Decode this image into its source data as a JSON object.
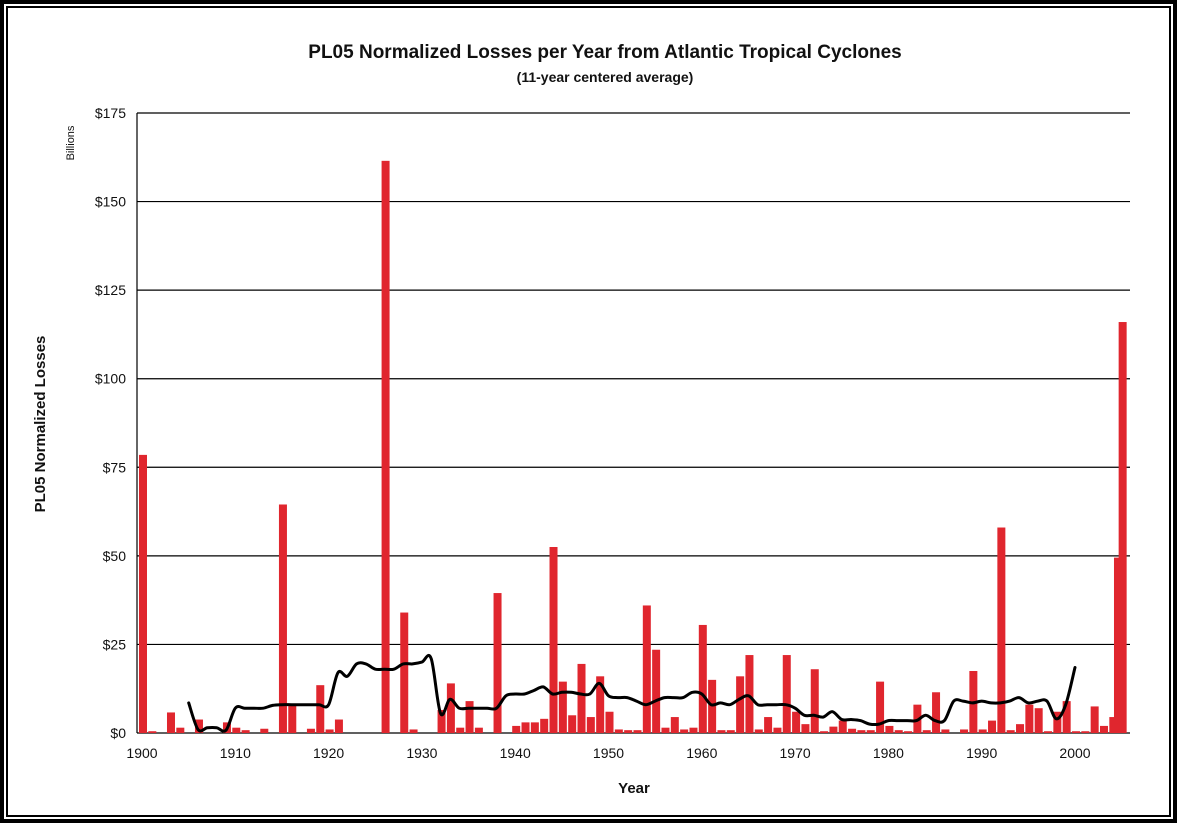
{
  "chart_data": {
    "type": "bar",
    "title": "PL05 Normalized Losses per Year from Atlantic Tropical Cyclones",
    "subtitle": "(11-year centered average)",
    "xlabel": "Year",
    "ylabel": "PL05 Normalized Losses",
    "yunit_label": "Billions",
    "ylim": [
      0,
      175
    ],
    "xlim": [
      1900,
      2005
    ],
    "yticks": [
      0,
      25,
      50,
      75,
      100,
      125,
      150,
      175
    ],
    "ytick_labels": [
      "$0",
      "$25",
      "$50",
      "$75",
      "$100",
      "$125",
      "$150",
      "$175"
    ],
    "xticks": [
      1900,
      1910,
      1920,
      1930,
      1940,
      1950,
      1960,
      1970,
      1980,
      1990,
      2000
    ],
    "xtick_labels": [
      "1900",
      "1910",
      "1920",
      "1930",
      "1940",
      "1950",
      "1960",
      "1970",
      "1980",
      "1990",
      "2000"
    ],
    "grid": true,
    "series": [
      {
        "kind": "bar",
        "color": "#e0262e",
        "points": [
          [
            1900,
            78.5
          ],
          [
            1901,
            0.5
          ],
          [
            1903,
            5.8
          ],
          [
            1904,
            1.5
          ],
          [
            1906,
            3.8
          ],
          [
            1909,
            3.0
          ],
          [
            1910,
            1.5
          ],
          [
            1911,
            0.8
          ],
          [
            1913,
            1.2
          ],
          [
            1915,
            64.5
          ],
          [
            1916,
            8.0
          ],
          [
            1918,
            1.2
          ],
          [
            1919,
            13.5
          ],
          [
            1920,
            1.0
          ],
          [
            1921,
            3.8
          ],
          [
            1926,
            161.5
          ],
          [
            1928,
            34.0
          ],
          [
            1929,
            1.0
          ],
          [
            1932,
            6.5
          ],
          [
            1933,
            14.0
          ],
          [
            1934,
            1.5
          ],
          [
            1935,
            9.0
          ],
          [
            1936,
            1.5
          ],
          [
            1938,
            39.5
          ],
          [
            1940,
            2.0
          ],
          [
            1941,
            3.0
          ],
          [
            1942,
            3.0
          ],
          [
            1943,
            4.0
          ],
          [
            1944,
            52.5
          ],
          [
            1945,
            14.5
          ],
          [
            1946,
            5.0
          ],
          [
            1947,
            19.5
          ],
          [
            1948,
            4.5
          ],
          [
            1949,
            16.0
          ],
          [
            1950,
            6.0
          ],
          [
            1951,
            1.0
          ],
          [
            1952,
            0.8
          ],
          [
            1953,
            0.8
          ],
          [
            1954,
            36.0
          ],
          [
            1955,
            23.5
          ],
          [
            1956,
            1.5
          ],
          [
            1957,
            4.5
          ],
          [
            1958,
            1.0
          ],
          [
            1959,
            1.5
          ],
          [
            1960,
            30.5
          ],
          [
            1961,
            15.0
          ],
          [
            1962,
            0.8
          ],
          [
            1963,
            0.8
          ],
          [
            1964,
            16.0
          ],
          [
            1965,
            22.0
          ],
          [
            1966,
            1.0
          ],
          [
            1967,
            4.5
          ],
          [
            1968,
            1.5
          ],
          [
            1969,
            22.0
          ],
          [
            1970,
            6.0
          ],
          [
            1971,
            2.5
          ],
          [
            1972,
            18.0
          ],
          [
            1973,
            0.5
          ],
          [
            1974,
            1.8
          ],
          [
            1975,
            3.5
          ],
          [
            1976,
            1.2
          ],
          [
            1977,
            0.8
          ],
          [
            1978,
            0.8
          ],
          [
            1979,
            14.5
          ],
          [
            1980,
            2.0
          ],
          [
            1981,
            0.8
          ],
          [
            1982,
            0.5
          ],
          [
            1983,
            8.0
          ],
          [
            1984,
            0.8
          ],
          [
            1985,
            11.5
          ],
          [
            1986,
            1.0
          ],
          [
            1988,
            1.0
          ],
          [
            1989,
            17.5
          ],
          [
            1990,
            1.0
          ],
          [
            1991,
            3.5
          ],
          [
            1992,
            58.0
          ],
          [
            1993,
            0.8
          ],
          [
            1994,
            2.5
          ],
          [
            1995,
            8.0
          ],
          [
            1996,
            7.0
          ],
          [
            1997,
            0.5
          ],
          [
            1998,
            6.0
          ],
          [
            1999,
            9.0
          ],
          [
            2000,
            0.5
          ],
          [
            2001,
            0.5
          ],
          [
            2002,
            7.5
          ],
          [
            2003,
            2.0
          ],
          [
            2004,
            4.5
          ],
          [
            2004.5,
            49.5
          ],
          [
            2005,
            116.0
          ]
        ]
      },
      {
        "kind": "line",
        "color": "#000000",
        "points": [
          [
            1905,
            8.5
          ],
          [
            1906,
            1.0
          ],
          [
            1907,
            1.5
          ],
          [
            1908,
            1.5
          ],
          [
            1909,
            0.8
          ],
          [
            1910,
            7.0
          ],
          [
            1911,
            7.0
          ],
          [
            1912,
            7.0
          ],
          [
            1913,
            7.0
          ],
          [
            1914,
            7.8
          ],
          [
            1915,
            8.0
          ],
          [
            1916,
            8.0
          ],
          [
            1917,
            8.0
          ],
          [
            1918,
            8.0
          ],
          [
            1919,
            8.0
          ],
          [
            1920,
            8.0
          ],
          [
            1921,
            17.0
          ],
          [
            1922,
            16.0
          ],
          [
            1923,
            19.5
          ],
          [
            1924,
            19.5
          ],
          [
            1925,
            18.0
          ],
          [
            1926,
            18.0
          ],
          [
            1927,
            18.0
          ],
          [
            1928,
            19.5
          ],
          [
            1929,
            19.5
          ],
          [
            1930,
            20.0
          ],
          [
            1931,
            21.0
          ],
          [
            1932,
            5.5
          ],
          [
            1933,
            9.5
          ],
          [
            1934,
            7.0
          ],
          [
            1935,
            7.0
          ],
          [
            1936,
            7.0
          ],
          [
            1937,
            7.0
          ],
          [
            1938,
            7.0
          ],
          [
            1939,
            10.5
          ],
          [
            1940,
            11.0
          ],
          [
            1941,
            11.0
          ],
          [
            1942,
            12.0
          ],
          [
            1943,
            13.0
          ],
          [
            1944,
            11.0
          ],
          [
            1945,
            11.5
          ],
          [
            1946,
            11.5
          ],
          [
            1947,
            11.0
          ],
          [
            1948,
            11.0
          ],
          [
            1949,
            14.0
          ],
          [
            1950,
            10.5
          ],
          [
            1951,
            10.0
          ],
          [
            1952,
            10.0
          ],
          [
            1953,
            9.0
          ],
          [
            1954,
            8.0
          ],
          [
            1955,
            9.0
          ],
          [
            1956,
            10.0
          ],
          [
            1957,
            10.0
          ],
          [
            1958,
            10.0
          ],
          [
            1959,
            11.5
          ],
          [
            1960,
            11.0
          ],
          [
            1961,
            8.0
          ],
          [
            1962,
            8.5
          ],
          [
            1963,
            8.0
          ],
          [
            1964,
            9.5
          ],
          [
            1965,
            10.5
          ],
          [
            1966,
            8.0
          ],
          [
            1967,
            8.0
          ],
          [
            1968,
            8.0
          ],
          [
            1969,
            8.0
          ],
          [
            1970,
            7.0
          ],
          [
            1971,
            5.0
          ],
          [
            1972,
            5.0
          ],
          [
            1973,
            4.5
          ],
          [
            1974,
            6.0
          ],
          [
            1975,
            3.8
          ],
          [
            1976,
            3.8
          ],
          [
            1977,
            3.5
          ],
          [
            1978,
            2.5
          ],
          [
            1979,
            2.5
          ],
          [
            1980,
            3.5
          ],
          [
            1981,
            3.5
          ],
          [
            1982,
            3.5
          ],
          [
            1983,
            3.5
          ],
          [
            1984,
            5.0
          ],
          [
            1985,
            3.5
          ],
          [
            1986,
            3.5
          ],
          [
            1987,
            9.0
          ],
          [
            1988,
            9.0
          ],
          [
            1989,
            8.5
          ],
          [
            1990,
            9.0
          ],
          [
            1991,
            8.5
          ],
          [
            1992,
            8.5
          ],
          [
            1993,
            9.0
          ],
          [
            1994,
            10.0
          ],
          [
            1995,
            8.5
          ],
          [
            1996,
            9.0
          ],
          [
            1997,
            9.0
          ],
          [
            1998,
            4.0
          ],
          [
            1999,
            8.0
          ],
          [
            2000,
            18.5
          ]
        ]
      }
    ]
  }
}
